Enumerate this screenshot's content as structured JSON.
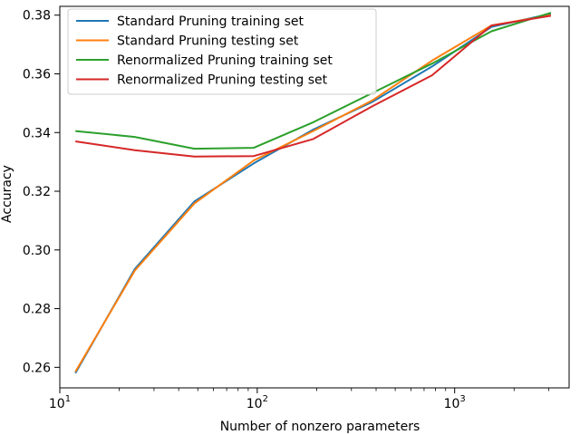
{
  "chart_data": {
    "type": "line",
    "title": "",
    "xlabel": "Number of nonzero parameters",
    "ylabel": "Accuracy",
    "x_scale": "log",
    "xlim": [
      10,
      3800
    ],
    "ylim": [
      0.253,
      0.383
    ],
    "x_ticks": [
      {
        "value": 10,
        "base": "10",
        "exp": "1"
      },
      {
        "value": 100,
        "base": "10",
        "exp": "2"
      },
      {
        "value": 1000,
        "base": "10",
        "exp": "3"
      }
    ],
    "y_ticks": [
      "0.26",
      "0.28",
      "0.30",
      "0.32",
      "0.34",
      "0.36",
      "0.38"
    ],
    "grid": false,
    "legend_position": "top-left",
    "series": [
      {
        "name": "Standard Pruning training set",
        "color": "#1f77b4",
        "x": [
          12,
          24,
          48,
          96,
          192,
          384,
          768,
          1536,
          3072
        ],
        "y": [
          0.258,
          0.2935,
          0.3165,
          0.3295,
          0.341,
          0.3505,
          0.3625,
          0.376,
          0.3805
        ]
      },
      {
        "name": "Standard Pruning testing set",
        "color": "#ff7f0e",
        "x": [
          12,
          24,
          48,
          96,
          192,
          384,
          768,
          1536,
          3072
        ],
        "y": [
          0.2585,
          0.293,
          0.3158,
          0.3305,
          0.3405,
          0.351,
          0.3645,
          0.3765,
          0.38
        ]
      },
      {
        "name": "Renormalized Pruning training set",
        "color": "#2ca02c",
        "x": [
          12,
          24,
          48,
          96,
          192,
          384,
          768,
          1536,
          3072
        ],
        "y": [
          0.3405,
          0.3385,
          0.3345,
          0.3348,
          0.3435,
          0.3535,
          0.3635,
          0.3745,
          0.3808
        ]
      },
      {
        "name": "Renormalized Pruning testing set",
        "color": "#d62728",
        "x": [
          12,
          24,
          48,
          96,
          192,
          384,
          768,
          1536,
          3072
        ],
        "y": [
          0.337,
          0.334,
          0.3318,
          0.332,
          0.3378,
          0.349,
          0.3595,
          0.3765,
          0.3798
        ]
      }
    ]
  }
}
